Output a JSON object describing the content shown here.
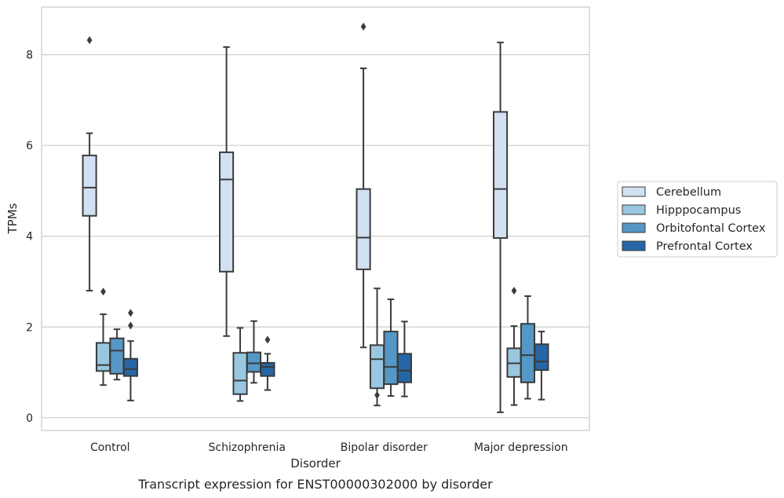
{
  "chart_data": {
    "type": "box",
    "xlabel": "Disorder",
    "ylabel": "TPMs",
    "caption": "Transcript expression for ENST00000302000 by disorder",
    "categories": [
      "Control",
      "Schizophrenia",
      "Bipolar disorder",
      "Major depression"
    ],
    "yticks": [
      0,
      2,
      4,
      6,
      8
    ],
    "ylim": [
      -0.28,
      9.05
    ],
    "grid": "horizontal",
    "legend_position": "right",
    "series": [
      {
        "name": "Cerebellum",
        "color": "#d1e1f1",
        "boxes": [
          {
            "whislo": 2.8,
            "q1": 4.45,
            "med": 5.07,
            "q3": 5.78,
            "whishi": 6.27,
            "fliers": [
              8.32
            ]
          },
          {
            "whislo": 1.8,
            "q1": 3.22,
            "med": 5.25,
            "q3": 5.85,
            "whishi": 8.17,
            "fliers": []
          },
          {
            "whislo": 1.55,
            "q1": 3.27,
            "med": 3.97,
            "q3": 5.04,
            "whishi": 7.7,
            "fliers": [
              8.62
            ]
          },
          {
            "whislo": 0.12,
            "q1": 3.96,
            "med": 5.04,
            "q3": 6.74,
            "whishi": 8.27,
            "fliers": []
          }
        ]
      },
      {
        "name": "Hipppocampus",
        "color": "#9ac7e0",
        "boxes": [
          {
            "whislo": 0.72,
            "q1": 1.03,
            "med": 1.16,
            "q3": 1.65,
            "whishi": 2.28,
            "fliers": [
              2.78
            ]
          },
          {
            "whislo": 0.37,
            "q1": 0.52,
            "med": 0.82,
            "q3": 1.43,
            "whishi": 1.98,
            "fliers": []
          },
          {
            "whislo": 0.27,
            "q1": 0.65,
            "med": 1.29,
            "q3": 1.6,
            "whishi": 2.85,
            "fliers": [
              0.5
            ]
          },
          {
            "whislo": 0.28,
            "q1": 0.9,
            "med": 1.2,
            "q3": 1.53,
            "whishi": 2.02,
            "fliers": [
              2.8
            ]
          }
        ]
      },
      {
        "name": "Orbitofontal Cortex",
        "color": "#5597c7",
        "boxes": [
          {
            "whislo": 0.84,
            "q1": 0.97,
            "med": 1.48,
            "q3": 1.75,
            "whishi": 1.95,
            "fliers": []
          },
          {
            "whislo": 0.77,
            "q1": 1.01,
            "med": 1.2,
            "q3": 1.44,
            "whishi": 2.13,
            "fliers": []
          },
          {
            "whislo": 0.48,
            "q1": 0.74,
            "med": 1.12,
            "q3": 1.9,
            "whishi": 2.61,
            "fliers": []
          },
          {
            "whislo": 0.42,
            "q1": 0.78,
            "med": 1.38,
            "q3": 2.07,
            "whishi": 2.68,
            "fliers": []
          }
        ]
      },
      {
        "name": "Prefrontal Cortex",
        "color": "#2666a6",
        "boxes": [
          {
            "whislo": 0.38,
            "q1": 0.92,
            "med": 1.07,
            "q3": 1.3,
            "whishi": 1.69,
            "fliers": [
              2.03,
              2.31
            ]
          },
          {
            "whislo": 0.61,
            "q1": 0.92,
            "med": 1.12,
            "q3": 1.21,
            "whishi": 1.41,
            "fliers": [
              1.72
            ]
          },
          {
            "whislo": 0.47,
            "q1": 0.78,
            "med": 1.04,
            "q3": 1.41,
            "whishi": 2.12,
            "fliers": []
          },
          {
            "whislo": 0.4,
            "q1": 1.05,
            "med": 1.24,
            "q3": 1.62,
            "whishi": 1.9,
            "fliers": []
          }
        ]
      }
    ]
  }
}
